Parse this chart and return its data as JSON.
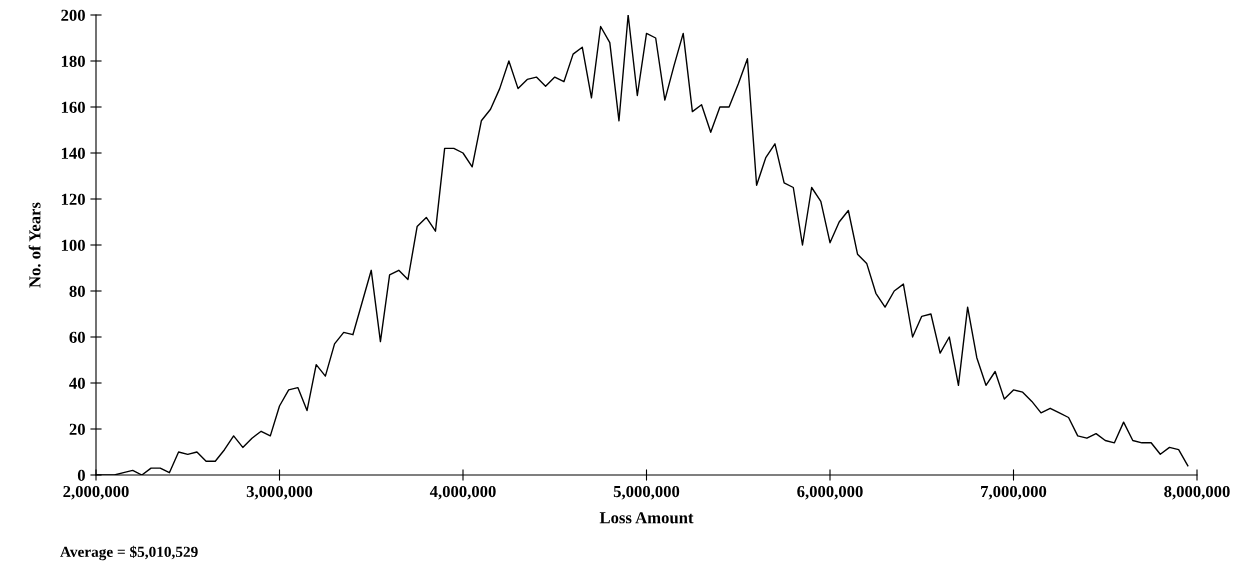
{
  "chart_data": {
    "type": "line",
    "xlabel": "Loss Amount",
    "ylabel": "No. of Years",
    "annotations": [
      "Average = $5,010,529"
    ],
    "xlim": [
      2000000,
      8000000
    ],
    "ylim": [
      0,
      200
    ],
    "xticks": [
      {
        "value": 2000000,
        "label": "2,000,000"
      },
      {
        "value": 3000000,
        "label": "3,000,000"
      },
      {
        "value": 4000000,
        "label": "4,000,000"
      },
      {
        "value": 5000000,
        "label": "5,000,000"
      },
      {
        "value": 6000000,
        "label": "6,000,000"
      },
      {
        "value": 7000000,
        "label": "7,000,000"
      },
      {
        "value": 8000000,
        "label": "8,000,000"
      }
    ],
    "yticks": [
      0,
      20,
      40,
      60,
      80,
      100,
      120,
      140,
      160,
      180,
      200
    ],
    "grid": false,
    "marker": "none",
    "line_style": "solid",
    "x": [
      2000000,
      2100000,
      2150000,
      2200000,
      2250000,
      2300000,
      2350000,
      2400000,
      2450000,
      2500000,
      2550000,
      2600000,
      2650000,
      2700000,
      2750000,
      2800000,
      2850000,
      2900000,
      2950000,
      3000000,
      3050000,
      3100000,
      3150000,
      3200000,
      3250000,
      3300000,
      3350000,
      3400000,
      3450000,
      3500000,
      3550000,
      3600000,
      3650000,
      3700000,
      3750000,
      3800000,
      3850000,
      3900000,
      3950000,
      4000000,
      4050000,
      4100000,
      4150000,
      4200000,
      4250000,
      4300000,
      4350000,
      4400000,
      4450000,
      4500000,
      4550000,
      4600000,
      4650000,
      4700000,
      4750000,
      4800000,
      4850000,
      4900000,
      4950000,
      5000000,
      5050000,
      5100000,
      5150000,
      5200000,
      5250000,
      5300000,
      5350000,
      5400000,
      5450000,
      5500000,
      5550000,
      5600000,
      5650000,
      5700000,
      5750000,
      5800000,
      5850000,
      5900000,
      5950000,
      6000000,
      6050000,
      6100000,
      6150000,
      6200000,
      6250000,
      6300000,
      6350000,
      6400000,
      6450000,
      6500000,
      6550000,
      6600000,
      6650000,
      6700000,
      6750000,
      6800000,
      6850000,
      6900000,
      6950000,
      7000000,
      7050000,
      7100000,
      7150000,
      7200000,
      7250000,
      7300000,
      7350000,
      7400000,
      7450000,
      7500000,
      7550000,
      7600000,
      7650000,
      7700000,
      7750000,
      7800000,
      7850000,
      7900000,
      7950000
    ],
    "series": [
      {
        "color": "#000000",
        "values": [
          0,
          0,
          1,
          2,
          0,
          3,
          3,
          1,
          10,
          9,
          10,
          6,
          6,
          11,
          17,
          12,
          16,
          19,
          17,
          30,
          37,
          38,
          28,
          48,
          43,
          57,
          62,
          61,
          75,
          89,
          58,
          87,
          89,
          85,
          108,
          112,
          106,
          142,
          142,
          140,
          134,
          154,
          159,
          168,
          180,
          168,
          172,
          173,
          169,
          173,
          171,
          183,
          186,
          164,
          195,
          188,
          154,
          200,
          165,
          192,
          190,
          163,
          178,
          192,
          158,
          161,
          149,
          160,
          160,
          170,
          181,
          126,
          138,
          144,
          127,
          125,
          100,
          125,
          119,
          101,
          110,
          115,
          96,
          92,
          79,
          73,
          80,
          83,
          60,
          69,
          70,
          53,
          60,
          39,
          73,
          51,
          39,
          45,
          33,
          37,
          36,
          32,
          27,
          29,
          27,
          25,
          17,
          16,
          18,
          15,
          14,
          23,
          15,
          14,
          14,
          9,
          12,
          11,
          4
        ]
      }
    ]
  }
}
